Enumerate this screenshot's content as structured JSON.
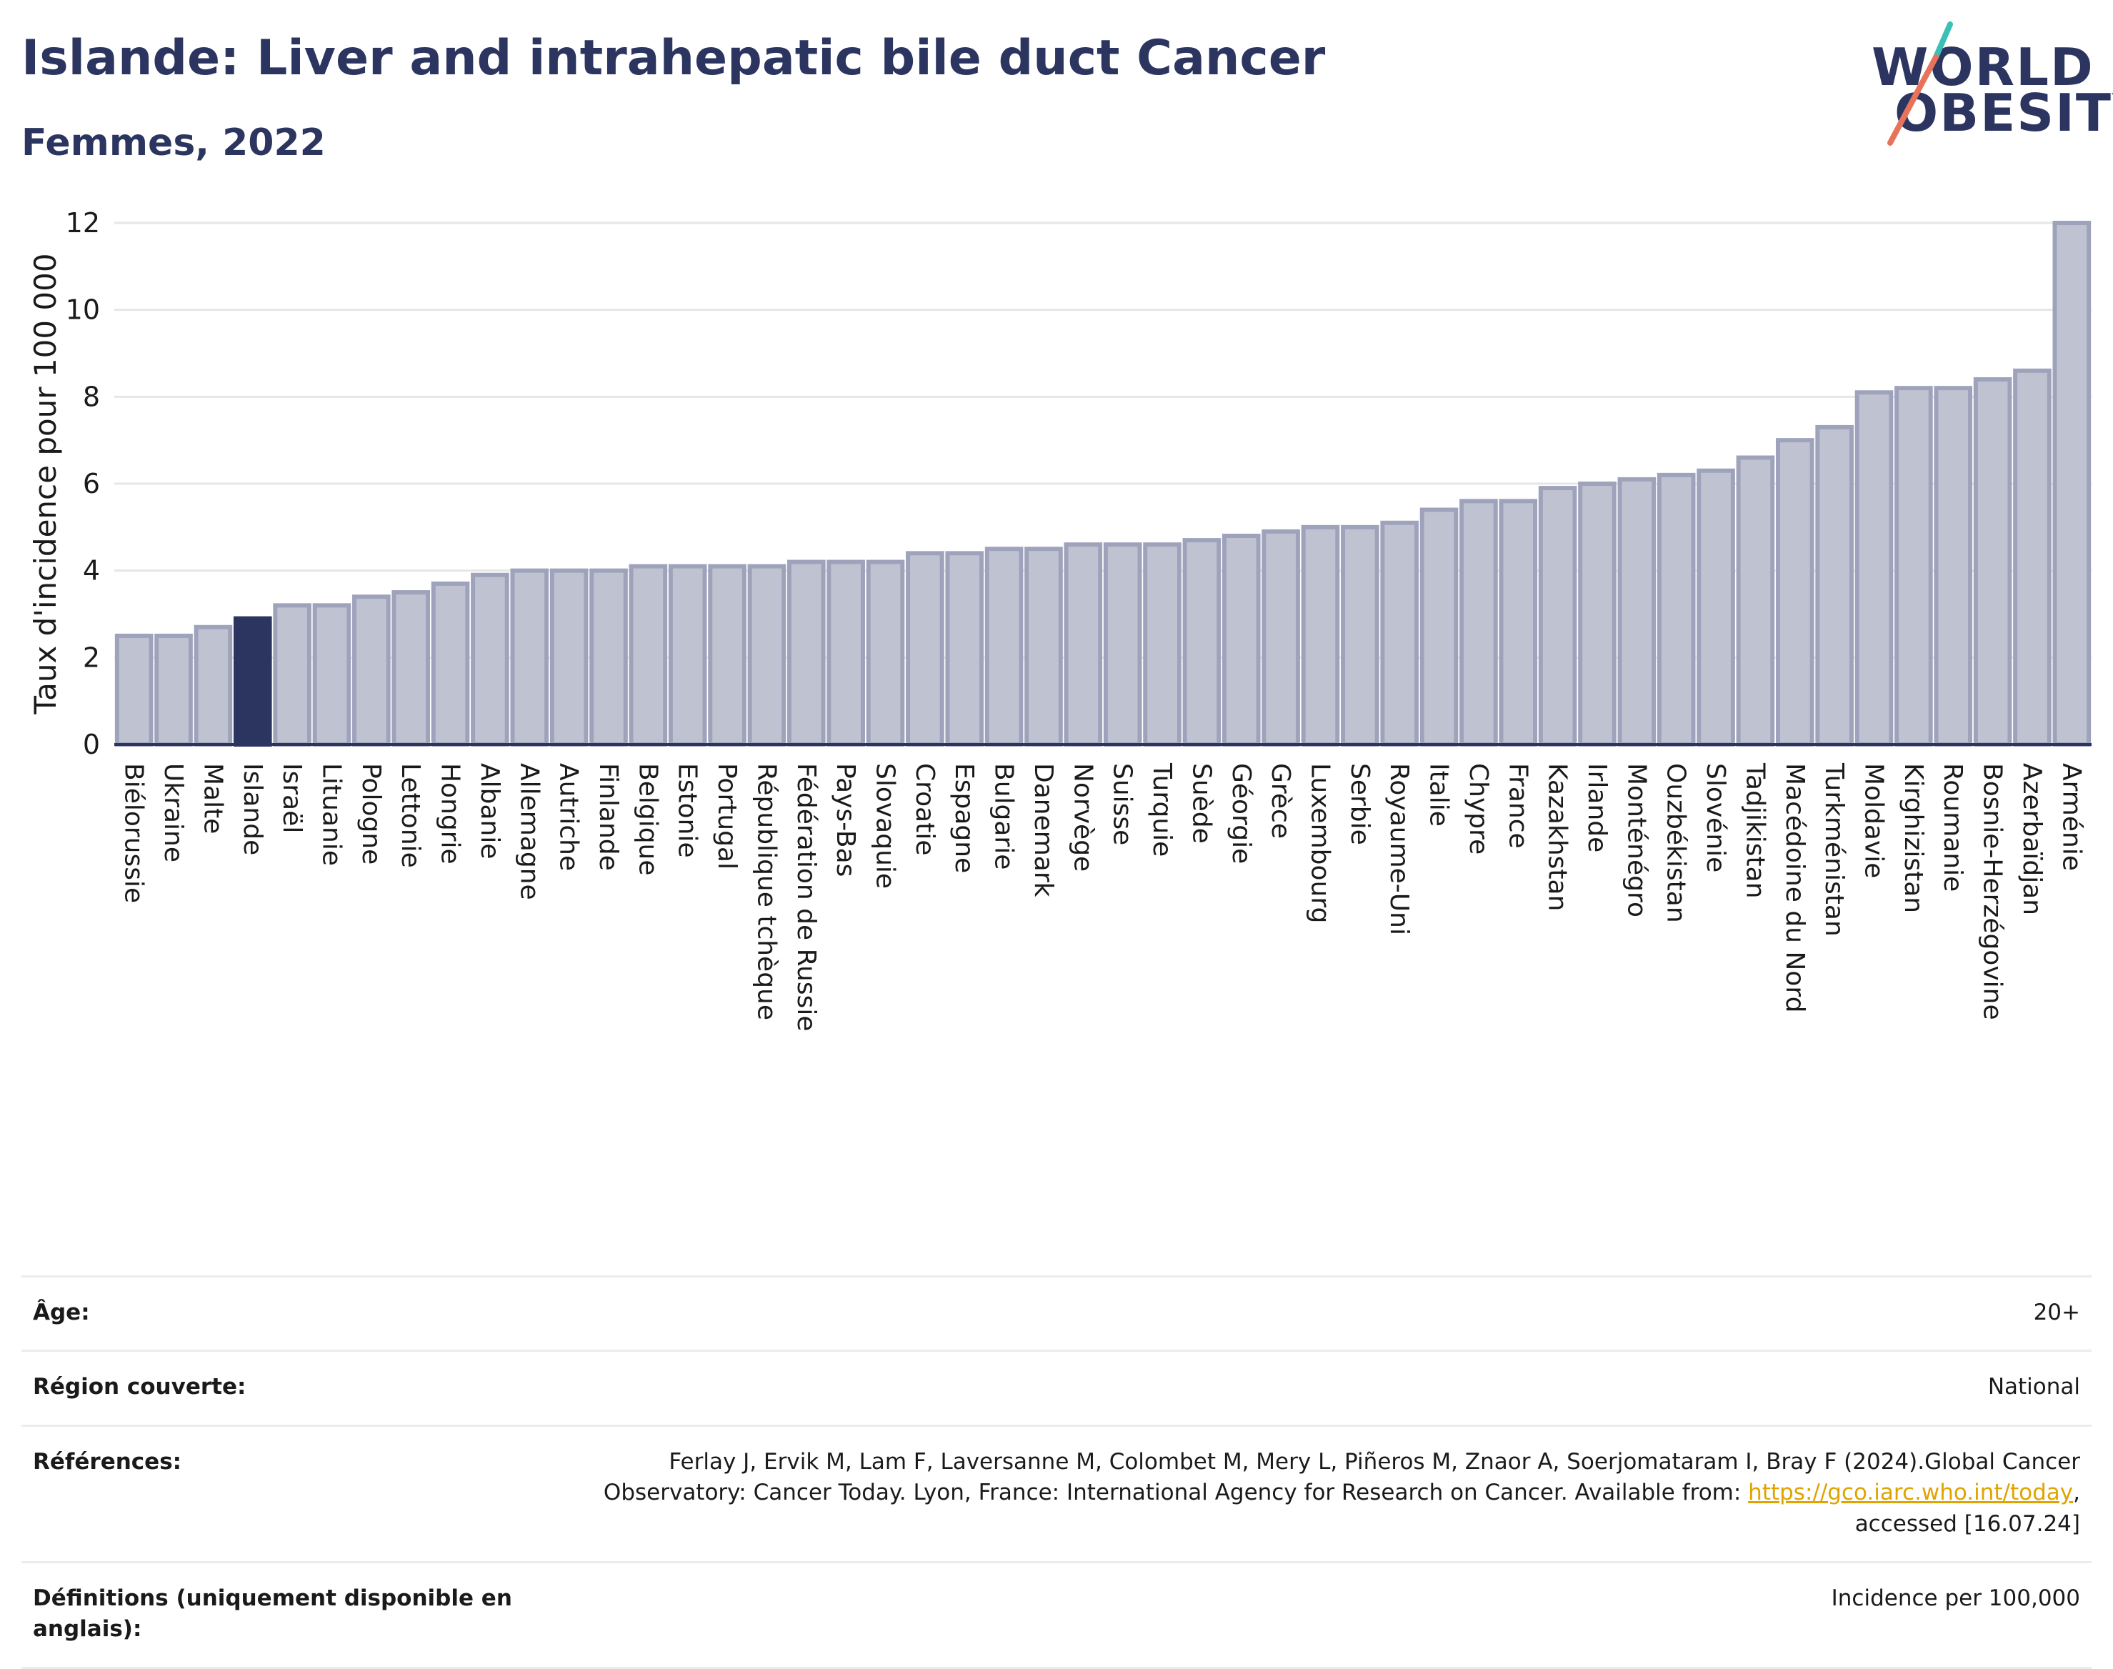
{
  "title": "Islande: Liver and intrahepatic bile duct Cancer",
  "subtitle": "Femmes, 2022",
  "logo": {
    "line1": "WORLD",
    "line2": "OBESITY",
    "accent_teal": "#3bbfb7",
    "accent_red": "#e8735a"
  },
  "colors": {
    "bar": "#bfc3d1",
    "bar_stroke": "#9ea3bb",
    "highlight": "#2b3560",
    "grid": "#e6e6e6",
    "axis": "#2b3560"
  },
  "chart_data": {
    "type": "bar",
    "ylabel": "Taux d'incidence pour 100 000",
    "ylim": [
      0,
      12
    ],
    "yticks": [
      0,
      2,
      4,
      6,
      8,
      10,
      12
    ],
    "grid": true,
    "highlight": "Islande",
    "categories": [
      "Biélorussie",
      "Ukraine",
      "Malte",
      "Islande",
      "Israël",
      "Lituanie",
      "Pologne",
      "Lettonie",
      "Hongrie",
      "Albanie",
      "Allemagne",
      "Autriche",
      "Finlande",
      "Belgique",
      "Estonie",
      "Portugal",
      "République tchèque",
      "Fédération de Russie",
      "Pays-Bas",
      "Slovaquie",
      "Croatie",
      "Espagne",
      "Bulgarie",
      "Danemark",
      "Norvège",
      "Suisse",
      "Turquie",
      "Suède",
      "Géorgie",
      "Grèce",
      "Luxembourg",
      "Serbie",
      "Royaume-Uni",
      "Italie",
      "Chypre",
      "France",
      "Kazakhstan",
      "Irlande",
      "Monténégro",
      "Ouzbékistan",
      "Slovénie",
      "Tadjikistan",
      "Macédoine du Nord",
      "Turkménistan",
      "Moldavie",
      "Kirghizistan",
      "Roumanie",
      "Bosnie-Herzégovine",
      "Azerbaïdjan",
      "Arménie"
    ],
    "values": [
      2.5,
      2.5,
      2.7,
      2.9,
      3.2,
      3.2,
      3.4,
      3.5,
      3.7,
      3.9,
      4.0,
      4.0,
      4.0,
      4.1,
      4.1,
      4.1,
      4.1,
      4.2,
      4.2,
      4.2,
      4.4,
      4.4,
      4.5,
      4.5,
      4.6,
      4.6,
      4.6,
      4.7,
      4.8,
      4.9,
      5.0,
      5.0,
      5.1,
      5.4,
      5.6,
      5.6,
      5.9,
      6.0,
      6.1,
      6.2,
      6.3,
      6.6,
      7.0,
      7.3,
      8.1,
      8.2,
      8.2,
      8.4,
      8.6,
      12.0
    ]
  },
  "info": {
    "age_label": "Âge:",
    "age_value": "20+",
    "region_label": "Région couverte:",
    "region_value": "National",
    "ref_label": "Références:",
    "ref_text_1": "Ferlay J, Ervik M, Lam F, Laversanne M, Colombet M, Mery L, Piñeros M, Znaor A, Soerjomataram I, Bray F (2024).Global Cancer Observatory: Cancer Today. Lyon, France: International Agency for Research on Cancer. Available from: ",
    "ref_link": "https://gco.iarc.who.int/today",
    "ref_text_2": ", accessed [16.07.24]",
    "def_label": "Définitions (uniquement disponible en anglais):",
    "def_value": "Incidence per 100,000"
  }
}
